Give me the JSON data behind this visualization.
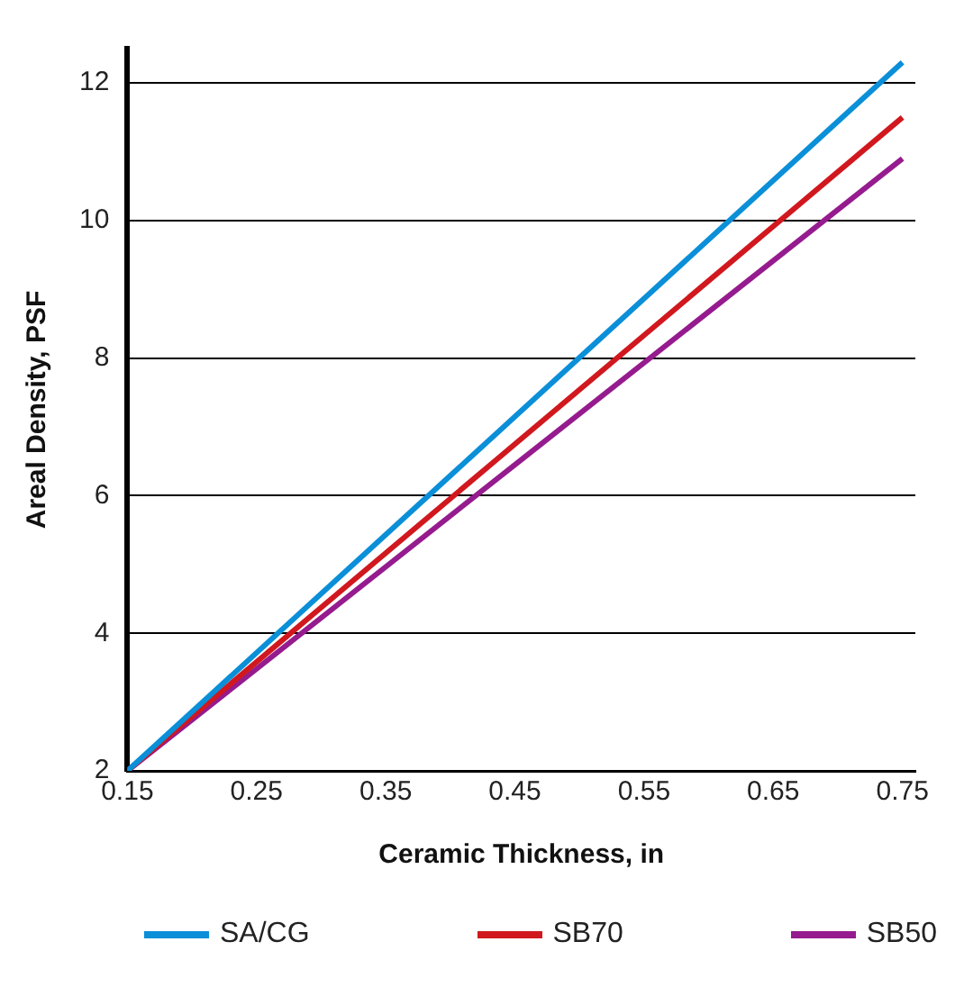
{
  "chart_data": {
    "type": "line",
    "xlabel": "Ceramic Thickness, in",
    "ylabel": "Areal Density, PSF",
    "x": [
      0.15,
      0.75
    ],
    "series": [
      {
        "name": "SA/CG",
        "color": "#0a8fd8",
        "values": [
          2,
          12.3
        ]
      },
      {
        "name": "SB70",
        "color": "#d0181e",
        "values": [
          2,
          11.5
        ]
      },
      {
        "name": "SB50",
        "color": "#951b8e",
        "values": [
          2,
          10.9
        ]
      }
    ],
    "xlim": [
      0.15,
      0.76
    ],
    "xticks": [
      0.15,
      0.25,
      0.35,
      0.45,
      0.55,
      0.65,
      0.75
    ],
    "ylim": [
      2,
      12.5
    ],
    "yticks": [
      2,
      4,
      6,
      8,
      10,
      12
    ],
    "grid": "y",
    "legend": "bottom",
    "marker": "none",
    "line_style": "solid"
  }
}
